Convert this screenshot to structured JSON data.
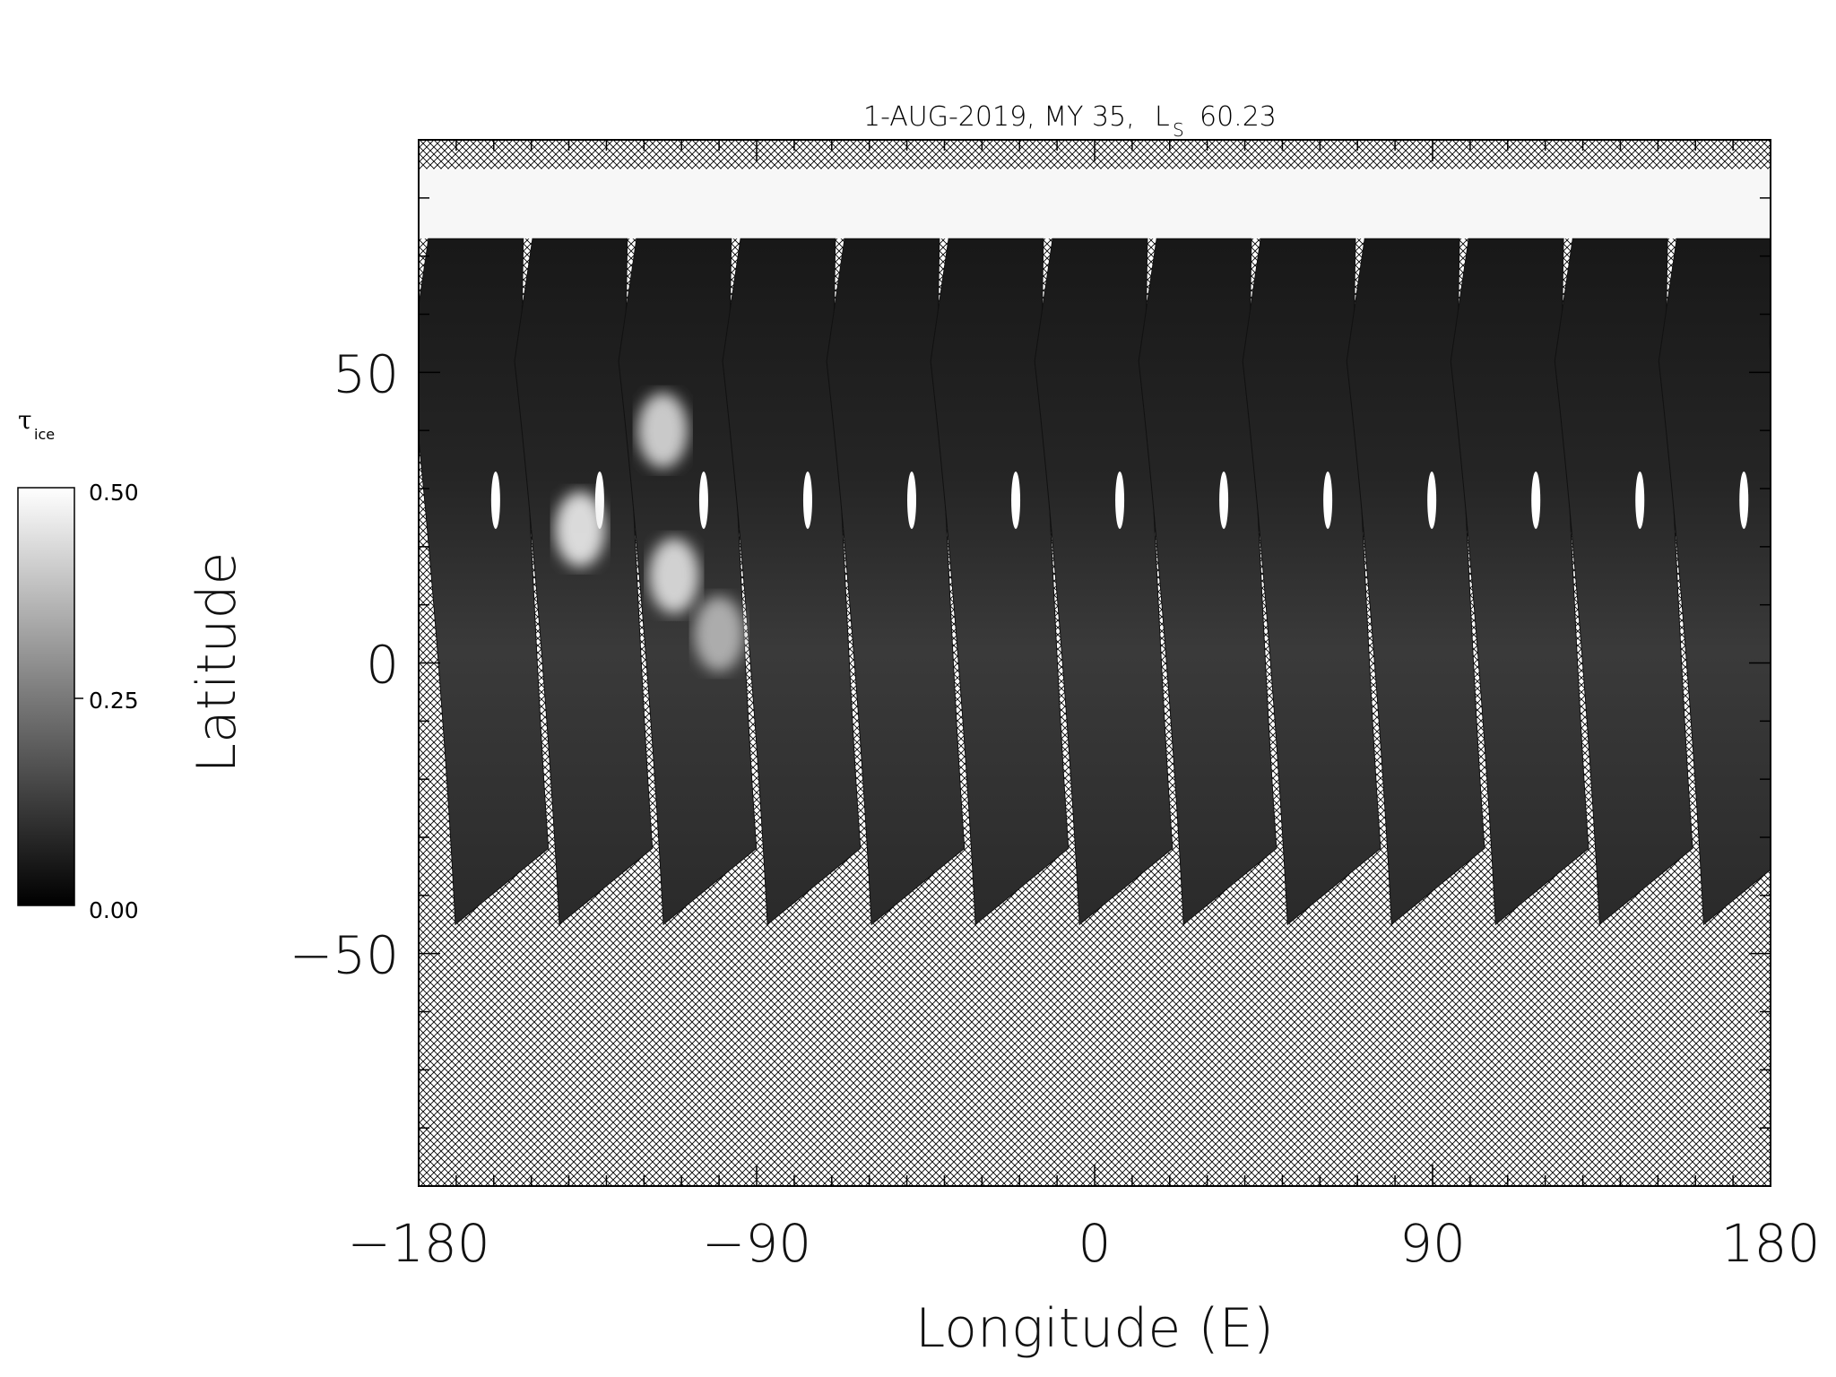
{
  "chart_data": {
    "type": "heatmap",
    "title_date": "1-AUG-2019, MY 35,",
    "title_ls_symbol": "L",
    "title_ls_sub": "S",
    "title_ls_value": "60.23",
    "xlabel": "Longitude (E)",
    "ylabel": "Latitude",
    "xlim": [
      -180,
      180
    ],
    "ylim": [
      -90,
      90
    ],
    "xticks": [
      -180,
      -90,
      0,
      90,
      180
    ],
    "xtick_labels": [
      "−180",
      "−90",
      "0",
      "90",
      "180"
    ],
    "yticks": [
      50,
      0,
      -50
    ],
    "ytick_labels": [
      "50",
      "0",
      "−50"
    ],
    "x_minor_step": 10,
    "y_minor_step": 10,
    "polar_cap_lat_range": [
      73,
      85
    ],
    "swath_lat_range": [
      -45,
      55
    ],
    "swath_count": 13,
    "swath_width_deg": 20,
    "swath_start_lon": -165,
    "swath_spacing_deg": 27.7,
    "colorbar": {
      "label_symbol": "τ",
      "label_sub": "ice",
      "min_label": "0.00",
      "mid_label": "0.25",
      "max_label": "0.50",
      "vmin": 0.0,
      "vmax": 0.5
    },
    "cloud_features": [
      {
        "lon": -137,
        "lat": 23,
        "value": 0.45
      },
      {
        "lon": -115,
        "lat": 40,
        "value": 0.4
      },
      {
        "lon": -112,
        "lat": 15,
        "value": 0.42
      },
      {
        "lon": -100,
        "lat": 5,
        "value": 0.3
      }
    ]
  },
  "colors": {
    "swath_dark": "#1a1a1a",
    "swath_mid": "#3a3a3a",
    "polar_cap": "#f7f7f7",
    "hatch": "#000000",
    "background": "#ffffff"
  }
}
